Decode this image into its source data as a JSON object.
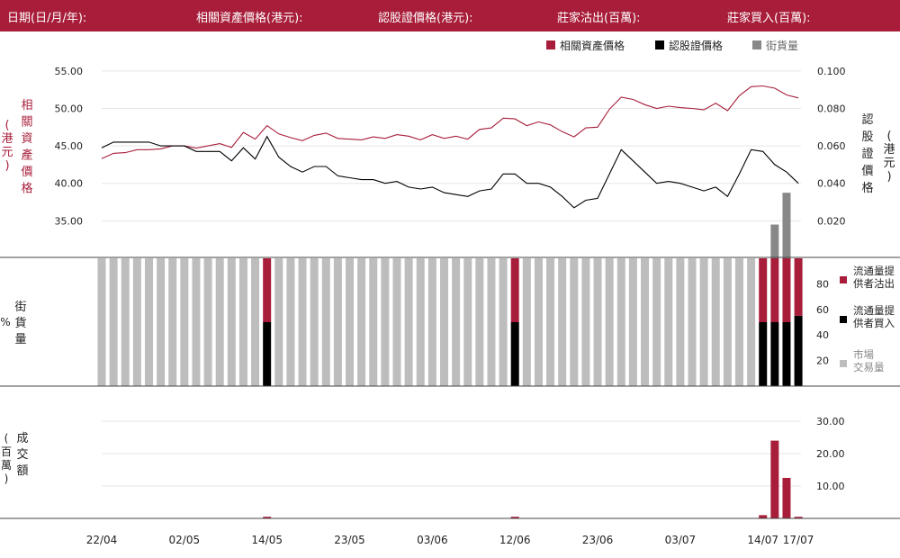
{
  "header": {
    "date_label": "日期(日/月/年):",
    "underlying_label": "相關資產價格(港元):",
    "warrant_label": "認股證價格(港元):",
    "sell_label": "莊家沽出(百萬):",
    "buy_label": "莊家買入(百萬):"
  },
  "colors": {
    "header_bg": "#a81e3a",
    "underlying": "#a81e3a",
    "warrant": "#000000",
    "outstanding": "#888888",
    "market": "#bdbdbd"
  },
  "chart_data": [
    {
      "type": "line",
      "legend": [
        "相關資產價格",
        "認股證價格",
        "街貨量"
      ],
      "y_left_label": [
        "相",
        "關",
        "資",
        "產",
        "價",
        "格"
      ],
      "y_left_unit": [
        "(",
        "港",
        "元",
        ")"
      ],
      "y_right_label": [
        "認",
        "股",
        "證",
        "價",
        "格"
      ],
      "y_right_unit": [
        "(",
        "港",
        "元",
        ")"
      ],
      "y_left_ticks": [
        "55.00",
        "50.00",
        "45.00",
        "40.00",
        "35.00"
      ],
      "y_right_ticks": [
        "0.100",
        "0.080",
        "0.060",
        "0.040",
        "0.020"
      ],
      "ylim_left": [
        30,
        57.5
      ],
      "ylim_right": [
        0,
        0.11
      ],
      "x_ticks": [
        "22/04",
        "02/05",
        "14/05",
        "23/05",
        "03/06",
        "12/06",
        "23/06",
        "03/07",
        "14/07",
        "17/07"
      ],
      "x_tick_index": [
        0,
        7,
        14,
        21,
        28,
        35,
        42,
        49,
        56,
        59
      ],
      "n_days": 60,
      "series": [
        {
          "name": "相關資產價格",
          "axis": "left",
          "values": [
            43.3,
            44.0,
            44.1,
            44.5,
            44.5,
            44.6,
            45.0,
            45.0,
            44.7,
            45.0,
            45.3,
            44.8,
            46.8,
            45.9,
            47.7,
            46.6,
            46.1,
            45.7,
            46.4,
            46.7,
            46.0,
            45.9,
            45.8,
            46.2,
            46.0,
            46.5,
            46.3,
            45.8,
            46.5,
            46.0,
            46.3,
            45.9,
            47.2,
            47.4,
            48.7,
            48.6,
            47.7,
            48.2,
            47.8,
            46.9,
            46.2,
            47.4,
            47.5,
            49.9,
            51.5,
            51.2,
            50.5,
            50.0,
            50.3,
            50.1,
            50.0,
            49.8,
            50.7,
            49.7,
            51.7,
            52.9,
            53.0,
            52.7,
            51.8,
            51.4
          ]
        },
        {
          "name": "認股證價格",
          "axis": "right",
          "values": [
            0.059,
            0.062,
            0.062,
            0.062,
            0.062,
            0.06,
            0.06,
            0.06,
            0.057,
            0.057,
            0.057,
            0.052,
            0.059,
            0.053,
            0.065,
            0.054,
            0.049,
            0.046,
            0.049,
            0.049,
            0.044,
            0.043,
            0.042,
            0.042,
            0.04,
            0.041,
            0.038,
            0.037,
            0.038,
            0.035,
            0.034,
            0.033,
            0.036,
            0.037,
            0.045,
            0.045,
            0.04,
            0.04,
            0.038,
            0.033,
            0.027,
            0.031,
            0.032,
            0.045,
            0.058,
            0.052,
            0.046,
            0.04,
            0.041,
            0.04,
            0.038,
            0.036,
            0.038,
            0.033,
            0.045,
            0.058,
            0.057,
            0.05,
            0.046,
            0.04
          ]
        },
        {
          "name": "街貨量",
          "axis": "right",
          "type": "bar",
          "values": [
            0,
            0,
            0,
            0,
            0,
            0,
            0,
            0,
            0,
            0,
            0,
            0,
            0,
            0,
            0,
            0,
            0,
            0,
            0,
            0,
            0,
            0,
            0,
            0,
            0,
            0,
            0,
            0,
            0,
            0,
            0,
            0,
            0,
            0,
            0,
            0,
            0,
            0,
            0,
            0,
            0,
            0,
            0,
            0,
            0,
            0,
            0,
            0,
            0,
            0,
            0,
            0,
            0,
            0,
            0,
            0,
            0,
            0.018,
            0.035,
            0
          ]
        }
      ]
    },
    {
      "type": "bar",
      "stacked": true,
      "y_label": [
        "街",
        "貨",
        "量"
      ],
      "y_unit": "%",
      "y_ticks": [
        "80",
        "60",
        "40",
        "20"
      ],
      "ylim": [
        0,
        100
      ],
      "series": [
        {
          "name": "流通量提供者沽出",
          "values": [
            0,
            0,
            0,
            0,
            0,
            0,
            0,
            0,
            0,
            0,
            0,
            0,
            0,
            0,
            50,
            0,
            0,
            0,
            0,
            0,
            0,
            0,
            0,
            0,
            0,
            0,
            0,
            0,
            0,
            0,
            0,
            0,
            0,
            0,
            0,
            50,
            0,
            0,
            0,
            0,
            0,
            0,
            0,
            0,
            0,
            0,
            0,
            0,
            0,
            0,
            0,
            0,
            0,
            0,
            0,
            0,
            50,
            50,
            50,
            45
          ]
        },
        {
          "name": "流通量提供者買入",
          "values": [
            0,
            0,
            0,
            0,
            0,
            0,
            0,
            0,
            0,
            0,
            0,
            0,
            0,
            0,
            50,
            0,
            0,
            0,
            0,
            0,
            0,
            0,
            0,
            0,
            0,
            0,
            0,
            0,
            0,
            0,
            0,
            0,
            0,
            0,
            0,
            50,
            0,
            0,
            0,
            0,
            0,
            0,
            0,
            0,
            0,
            0,
            0,
            0,
            0,
            0,
            0,
            0,
            0,
            0,
            0,
            0,
            50,
            50,
            50,
            55
          ]
        },
        {
          "name": "市場交易量",
          "values": [
            100,
            100,
            100,
            100,
            100,
            100,
            100,
            100,
            100,
            100,
            100,
            100,
            100,
            100,
            0,
            100,
            100,
            100,
            100,
            100,
            100,
            100,
            100,
            100,
            100,
            100,
            100,
            100,
            100,
            100,
            100,
            100,
            100,
            100,
            100,
            0,
            100,
            100,
            100,
            100,
            100,
            100,
            100,
            100,
            100,
            100,
            100,
            100,
            100,
            100,
            100,
            100,
            100,
            100,
            100,
            100,
            0,
            0,
            0,
            0
          ]
        }
      ],
      "legend_lines": [
        [
          "流通量提",
          "供者沽出"
        ],
        [
          "流通量提",
          "供者買入"
        ],
        [
          "市場",
          "交易量"
        ]
      ]
    },
    {
      "type": "bar",
      "y_label": [
        "成",
        "交",
        "額"
      ],
      "y_unit": [
        "(",
        "百",
        "萬",
        ")"
      ],
      "y_ticks": [
        "30.00",
        "20.00",
        "10.00"
      ],
      "ylim": [
        0,
        35
      ],
      "series": [
        {
          "name": "成交額",
          "values": [
            0,
            0,
            0,
            0,
            0,
            0,
            0,
            0,
            0,
            0,
            0,
            0,
            0,
            0,
            0.5,
            0,
            0,
            0,
            0,
            0,
            0,
            0,
            0,
            0,
            0,
            0,
            0,
            0,
            0,
            0,
            0,
            0,
            0,
            0,
            0,
            0.5,
            0,
            0,
            0,
            0,
            0,
            0,
            0,
            0,
            0,
            0,
            0,
            0,
            0,
            0,
            0,
            0,
            0,
            0,
            0,
            0,
            1.0,
            24.0,
            12.5,
            0.5
          ]
        }
      ]
    }
  ]
}
